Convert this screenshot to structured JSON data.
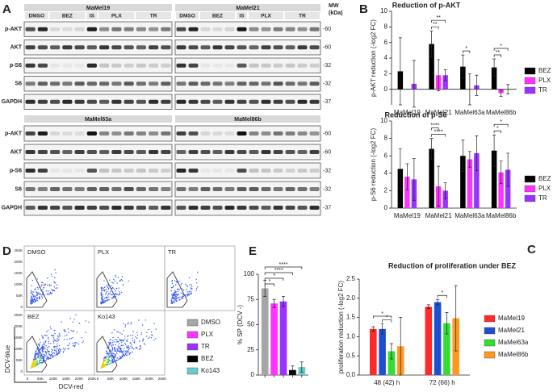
{
  "panels": [
    "A",
    "B",
    "C",
    "D",
    "E"
  ],
  "blots": {
    "blocks": [
      {
        "title": "MaMel19",
        "lanes": [
          "DMSO",
          "BEZ",
          "IS",
          "PLX",
          "TR"
        ]
      },
      {
        "title": "MaMel21",
        "lanes": [
          "DMSO",
          "BEZ",
          "IS",
          "PLX",
          "TR"
        ]
      },
      {
        "title": "MaMel63a"
      },
      {
        "title": "MaMel86b"
      }
    ],
    "rows": [
      "p-AKT",
      "AKT",
      "p-S6",
      "S6",
      "GAPDH"
    ],
    "mw": [
      "-60",
      "-60",
      "-32",
      "-32",
      "-37"
    ],
    "mw_title": [
      "MW",
      "(kDa)"
    ]
  },
  "flow": {
    "plots": [
      "DMSO",
      "PLX",
      "TR",
      "BEZ",
      "Ko143"
    ],
    "ylabel": "DCV-blue",
    "xlabel": "DCV-red",
    "xticks": [
      "0",
      "50K",
      "100K",
      "150K",
      "200K",
      "250K"
    ],
    "yticks": [
      "0",
      "50K",
      "100K",
      "150K",
      "200K",
      "250K"
    ]
  },
  "chart_data": [
    {
      "type": "bar",
      "title": "Reduction of p-AKT",
      "ylabel": "p-AKT reduction (-log2 FC)",
      "categories": [
        "MaMel19",
        "MaMel21",
        "MaMel63a",
        "MaMel86b"
      ],
      "series": [
        {
          "name": "BEZ",
          "color": "#000000",
          "values": [
            2.3,
            5.8,
            2.9,
            2.8
          ],
          "errors": [
            4.3,
            1.7,
            1.5,
            1.1
          ]
        },
        {
          "name": "PLX",
          "color": "#ff33ff",
          "values": [
            0,
            1.8,
            0,
            -0.5
          ],
          "errors": [
            0,
            2.0,
            2.0,
            0.4
          ]
        },
        {
          "name": "TR",
          "color": "#9933ff",
          "values": [
            0.7,
            1.8,
            0.5,
            0
          ],
          "errors": [
            3.0,
            0.7,
            1.3,
            0.6
          ]
        }
      ],
      "ylim": [
        -2,
        10
      ],
      "yticks": [
        0,
        2,
        4,
        6,
        8,
        10
      ],
      "annotations": [
        "**",
        "**",
        "*",
        "**",
        "*"
      ]
    },
    {
      "type": "bar",
      "title": "Reduction of p-S6",
      "ylabel": "p-S6 reduction (-log2 FC)",
      "categories": [
        "MaMel19",
        "MaMel21",
        "MaMel63a",
        "MaMel86b"
      ],
      "series": [
        {
          "name": "BEZ",
          "color": "#000000",
          "values": [
            4.5,
            6.8,
            6.0,
            6.6
          ],
          "errors": [
            2.3,
            1.2,
            1.8,
            1.8
          ]
        },
        {
          "name": "PLX",
          "color": "#ff33ff",
          "values": [
            3.6,
            2.5,
            5.6,
            4.1
          ],
          "errors": [
            1.5,
            2.3,
            0.9,
            1.3
          ]
        },
        {
          "name": "TR",
          "color": "#9933ff",
          "values": [
            3.3,
            2.0,
            6.3,
            4.4
          ],
          "errors": [
            2.4,
            0.9,
            2.0,
            1.9
          ]
        }
      ],
      "ylim": [
        0,
        10
      ],
      "yticks": [
        0,
        2,
        4,
        6,
        8,
        10
      ],
      "annotations": [
        "****",
        "****",
        "*",
        "*"
      ]
    },
    {
      "type": "bar",
      "ylabel": "% SP (DCV -)",
      "series": [
        {
          "name": "DMSO",
          "color": "#a6a6a6",
          "values": [
            86
          ],
          "errors": [
            8
          ]
        },
        {
          "name": "PLX",
          "color": "#ff33ff",
          "values": [
            71
          ],
          "errors": [
            4
          ]
        },
        {
          "name": "TR",
          "color": "#9933ff",
          "values": [
            73
          ],
          "errors": [
            5
          ]
        },
        {
          "name": "BEZ",
          "color": "#000000",
          "values": [
            5
          ],
          "errors": [
            4
          ]
        },
        {
          "name": "Ko143",
          "color": "#66cccc",
          "values": [
            8
          ],
          "errors": [
            5
          ]
        }
      ],
      "ylim": [
        0,
        100
      ],
      "yticks": [
        0,
        25,
        50,
        75,
        100
      ],
      "annotations": [
        "*",
        "*",
        "****",
        "****"
      ]
    },
    {
      "type": "bar",
      "title": "Reduction of proliferation under BEZ",
      "ylabel": "proliferation reduction (-log2 FC)",
      "categories": [
        "48 (42) h",
        "72 (66) h"
      ],
      "series": [
        {
          "name": "MaMel19",
          "color": "#ff2a2a",
          "values": [
            1.2,
            1.78
          ],
          "errors": [
            0.06,
            0.05
          ]
        },
        {
          "name": "MaMel21",
          "color": "#1f4fd1",
          "values": [
            1.2,
            1.9
          ],
          "errors": [
            0.13,
            0.07
          ]
        },
        {
          "name": "MaMel63a",
          "color": "#33dd33",
          "values": [
            0.62,
            1.35
          ],
          "errors": [
            0.2,
            0.28
          ]
        },
        {
          "name": "MaMel86b",
          "color": "#ff9922",
          "values": [
            0.75,
            1.48
          ],
          "errors": [
            0.75,
            0.85
          ]
        }
      ],
      "ylim": [
        0,
        2.5
      ],
      "yticks": [
        {
          "value": 0,
          "label": "0.0"
        },
        {
          "value": 0.5,
          "label": "0.5"
        },
        {
          "value": 1,
          "label": "1.0"
        },
        {
          "value": 1.5,
          "label": "1.5"
        },
        {
          "value": 2,
          "label": "2.0"
        },
        {
          "value": 2.5,
          "label": "2.5"
        }
      ],
      "annotations": [
        "*",
        "*",
        "*"
      ]
    }
  ]
}
